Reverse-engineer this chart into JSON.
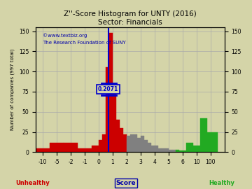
{
  "title": "Z''-Score Histogram for UNTY (2016)",
  "subtitle": "Sector: Financials",
  "watermark1": "©www.textbiz.org",
  "watermark2": "The Research Foundation of SUNY",
  "xlabel_center": "Score",
  "xlabel_left": "Unhealthy",
  "xlabel_right": "Healthy",
  "ylabel_left": "Number of companies (997 total)",
  "marker_value_idx": 5.2071,
  "marker_label": "0.2071",
  "background_color": "#d4d4a8",
  "tick_labels": [
    "-10",
    "-5",
    "-2",
    "-1",
    "0",
    "1",
    "2",
    "3",
    "4",
    "5",
    "6",
    "10",
    "100"
  ],
  "tick_positions": [
    0,
    1,
    2,
    3,
    4,
    5,
    6,
    7,
    8,
    9,
    10,
    11,
    12
  ],
  "bar_data": [
    {
      "bin_start": -0.5,
      "bin_end": 0.5,
      "height": 5,
      "color": "#cc0000",
      "real_val": -10
    },
    {
      "bin_start": 0.5,
      "bin_end": 1.5,
      "height": 12,
      "color": "#cc0000",
      "real_val": -5
    },
    {
      "bin_start": 1.5,
      "bin_end": 2.5,
      "height": 12,
      "color": "#cc0000",
      "real_val": -2
    },
    {
      "bin_start": 2.5,
      "bin_end": 3.5,
      "height": 5,
      "color": "#cc0000",
      "real_val": -1
    },
    {
      "bin_start": 3.5,
      "bin_end": 4.0,
      "height": 8,
      "color": "#cc0000",
      "real_val": -0.5
    },
    {
      "bin_start": 4.0,
      "bin_end": 4.25,
      "height": 15,
      "color": "#cc0000",
      "real_val": -0.25
    },
    {
      "bin_start": 4.25,
      "bin_end": 4.5,
      "height": 22,
      "color": "#cc0000",
      "real_val": 0.0
    },
    {
      "bin_start": 4.5,
      "bin_end": 4.75,
      "height": 105,
      "color": "#cc0000",
      "real_val": 0.1
    },
    {
      "bin_start": 4.75,
      "bin_end": 5.0,
      "height": 148,
      "color": "#cc0000",
      "real_val": 0.25
    },
    {
      "bin_start": 5.0,
      "bin_end": 5.25,
      "height": 75,
      "color": "#cc0000",
      "real_val": 0.5
    },
    {
      "bin_start": 5.25,
      "bin_end": 5.5,
      "height": 40,
      "color": "#cc0000",
      "real_val": 0.75
    },
    {
      "bin_start": 5.5,
      "bin_end": 5.75,
      "height": 30,
      "color": "#cc0000",
      "real_val": 1.0
    },
    {
      "bin_start": 5.75,
      "bin_end": 6.0,
      "height": 22,
      "color": "#cc0000",
      "real_val": 1.25
    },
    {
      "bin_start": 6.0,
      "bin_end": 6.25,
      "height": 20,
      "color": "#808080",
      "real_val": 1.5
    },
    {
      "bin_start": 6.25,
      "bin_end": 6.5,
      "height": 22,
      "color": "#808080",
      "real_val": 1.75
    },
    {
      "bin_start": 6.5,
      "bin_end": 6.75,
      "height": 22,
      "color": "#808080",
      "real_val": 2.0
    },
    {
      "bin_start": 6.75,
      "bin_end": 7.0,
      "height": 18,
      "color": "#808080",
      "real_val": 2.25
    },
    {
      "bin_start": 7.0,
      "bin_end": 7.25,
      "height": 20,
      "color": "#808080",
      "real_val": 2.5
    },
    {
      "bin_start": 7.25,
      "bin_end": 7.5,
      "height": 15,
      "color": "#808080",
      "real_val": 2.75
    },
    {
      "bin_start": 7.5,
      "bin_end": 7.75,
      "height": 12,
      "color": "#808080",
      "real_val": 3.0
    },
    {
      "bin_start": 7.75,
      "bin_end": 8.0,
      "height": 8,
      "color": "#808080",
      "real_val": 3.25
    },
    {
      "bin_start": 8.0,
      "bin_end": 8.25,
      "height": 8,
      "color": "#808080",
      "real_val": 3.5
    },
    {
      "bin_start": 8.25,
      "bin_end": 8.5,
      "height": 5,
      "color": "#808080",
      "real_val": 3.75
    },
    {
      "bin_start": 8.5,
      "bin_end": 8.75,
      "height": 5,
      "color": "#808080",
      "real_val": 4.0
    },
    {
      "bin_start": 8.75,
      "bin_end": 9.0,
      "height": 5,
      "color": "#808080",
      "real_val": 4.25
    },
    {
      "bin_start": 9.0,
      "bin_end": 9.25,
      "height": 3,
      "color": "#808080",
      "real_val": 4.5
    },
    {
      "bin_start": 9.25,
      "bin_end": 9.5,
      "height": 3,
      "color": "#808080",
      "real_val": 4.75
    },
    {
      "bin_start": 9.5,
      "bin_end": 9.75,
      "height": 3,
      "color": "#22aa22",
      "real_val": 5.0
    },
    {
      "bin_start": 9.75,
      "bin_end": 10.0,
      "height": 2,
      "color": "#22aa22",
      "real_val": 5.25
    },
    {
      "bin_start": 10.0,
      "bin_end": 10.25,
      "height": 2,
      "color": "#22aa22",
      "real_val": 5.5
    },
    {
      "bin_start": 10.25,
      "bin_end": 10.75,
      "height": 12,
      "color": "#22aa22",
      "real_val": 6.0
    },
    {
      "bin_start": 10.75,
      "bin_end": 11.25,
      "height": 8,
      "color": "#22aa22",
      "real_val": 6.5
    },
    {
      "bin_start": 11.25,
      "bin_end": 11.75,
      "height": 42,
      "color": "#22aa22",
      "real_val": 10.0
    },
    {
      "bin_start": 11.75,
      "bin_end": 12.5,
      "height": 25,
      "color": "#22aa22",
      "real_val": 100.0
    }
  ],
  "xlim": [
    -0.5,
    13.0
  ],
  "ylim": [
    0,
    155
  ],
  "yticks_left": [
    0,
    25,
    50,
    75,
    100,
    125,
    150
  ],
  "yticks_right": [
    0,
    25,
    50,
    75,
    100,
    125,
    150
  ],
  "grid_color": "#aaaaaa",
  "title_color": "#000000",
  "unhealthy_color": "#cc0000",
  "healthy_color": "#22aa22",
  "score_color": "#0000aa",
  "marker_color": "#0000cc"
}
